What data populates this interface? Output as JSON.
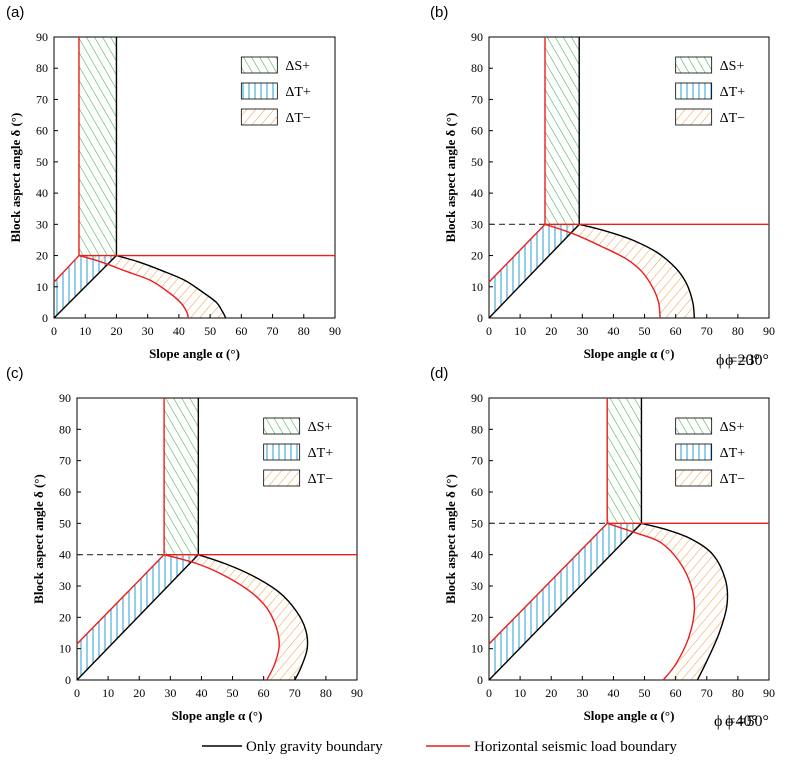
{
  "chart_data": [
    {
      "type": "area",
      "panel_label": "(a)",
      "phi_label": "ϕ =20°",
      "xlabel": "Slope angle  α  (°)",
      "ylabel": "Block aspect angle  δ  (°)",
      "xlim": [
        0,
        90
      ],
      "ylim": [
        0,
        90
      ],
      "xticks": [
        "0",
        "10",
        "20",
        "30",
        "40",
        "50",
        "60",
        "70",
        "80",
        "90"
      ],
      "yticks": [
        "0",
        "10",
        "20",
        "30",
        "40",
        "50",
        "60",
        "70",
        "80",
        "90"
      ],
      "legend": [
        "ΔS+",
        "ΔT+",
        "ΔT−"
      ],
      "gravity": {
        "vertical_x": 20,
        "corner_y": 20,
        "curve": [
          [
            20,
            20
          ],
          [
            27,
            18
          ],
          [
            35,
            15
          ],
          [
            42,
            12
          ],
          [
            48,
            8
          ],
          [
            52,
            5
          ],
          [
            54,
            2
          ],
          [
            55,
            0
          ]
        ]
      },
      "seismic": {
        "vertical_x": 8,
        "horizontal_y": 20,
        "origin_y": 11.5,
        "curve": [
          [
            8,
            20
          ],
          [
            15,
            18
          ],
          [
            23,
            15
          ],
          [
            31,
            12
          ],
          [
            37,
            8
          ],
          [
            40.5,
            5
          ],
          [
            42.5,
            2
          ],
          [
            43,
            0
          ]
        ]
      }
    },
    {
      "type": "area",
      "panel_label": "(b)",
      "phi_label": "ϕ =30°",
      "xlabel": "Slope angle  α  (°)",
      "ylabel": "Block aspect angle  δ  (°)",
      "xlim": [
        0,
        90
      ],
      "ylim": [
        0,
        90
      ],
      "xticks": [
        "0",
        "10",
        "20",
        "30",
        "40",
        "50",
        "60",
        "70",
        "80",
        "90"
      ],
      "yticks": [
        "0",
        "10",
        "20",
        "30",
        "40",
        "50",
        "60",
        "70",
        "80",
        "90"
      ],
      "legend": [
        "ΔS+",
        "ΔT+",
        "ΔT−"
      ],
      "gravity": {
        "vertical_x": 29,
        "corner_y": 30,
        "curve": [
          [
            29,
            30
          ],
          [
            37,
            28
          ],
          [
            46,
            25
          ],
          [
            54,
            21
          ],
          [
            60,
            16
          ],
          [
            63.5,
            11
          ],
          [
            65.5,
            5
          ],
          [
            66,
            0
          ]
        ]
      },
      "seismic": {
        "vertical_x": 18,
        "horizontal_y": 30,
        "origin_y": 11.5,
        "curve": [
          [
            18,
            30
          ],
          [
            27,
            27
          ],
          [
            36,
            23
          ],
          [
            44,
            19
          ],
          [
            49,
            15
          ],
          [
            52.5,
            10
          ],
          [
            54.5,
            5
          ],
          [
            55,
            0
          ]
        ]
      }
    },
    {
      "type": "area",
      "panel_label": "(c)",
      "phi_label": "ϕ =40°",
      "xlabel": "Slope angle  α  (°)",
      "ylabel": "Block aspect angle  δ  (°)",
      "xlim": [
        0,
        90
      ],
      "ylim": [
        0,
        90
      ],
      "xticks": [
        "0",
        "10",
        "20",
        "30",
        "40",
        "50",
        "60",
        "70",
        "80",
        "90"
      ],
      "yticks": [
        "0",
        "10",
        "20",
        "30",
        "40",
        "50",
        "60",
        "70",
        "80",
        "90"
      ],
      "legend": [
        "ΔS+",
        "ΔT+",
        "ΔT−"
      ],
      "gravity": {
        "vertical_x": 39,
        "corner_y": 40,
        "curve": [
          [
            39,
            40
          ],
          [
            48,
            37
          ],
          [
            57,
            33
          ],
          [
            65,
            28
          ],
          [
            70.5,
            22
          ],
          [
            73.5,
            16
          ],
          [
            74,
            10
          ],
          [
            72,
            4
          ],
          [
            70,
            0
          ]
        ]
      },
      "seismic": {
        "vertical_x": 28,
        "horizontal_y": 40,
        "origin_y": 11.5,
        "curve": [
          [
            28,
            40
          ],
          [
            39,
            37
          ],
          [
            48,
            33
          ],
          [
            56,
            28
          ],
          [
            61,
            23
          ],
          [
            64,
            17
          ],
          [
            65,
            11
          ],
          [
            63.5,
            5
          ],
          [
            61,
            0
          ]
        ]
      }
    },
    {
      "type": "area",
      "panel_label": "(d)",
      "phi_label": "ϕ =50°",
      "xlabel": "Slope angle  α  (°)",
      "ylabel": "Block aspect angle  δ  (°)",
      "xlim": [
        0,
        90
      ],
      "ylim": [
        0,
        90
      ],
      "xticks": [
        "0",
        "10",
        "20",
        "30",
        "40",
        "50",
        "60",
        "70",
        "80",
        "90"
      ],
      "yticks": [
        "0",
        "10",
        "20",
        "30",
        "40",
        "50",
        "60",
        "70",
        "80",
        "90"
      ],
      "legend": [
        "ΔS+",
        "ΔT+",
        "ΔT−"
      ],
      "gravity": {
        "vertical_x": 49,
        "corner_y": 50,
        "curve": [
          [
            49,
            50
          ],
          [
            57,
            48
          ],
          [
            65,
            45
          ],
          [
            72,
            40
          ],
          [
            76,
            32
          ],
          [
            76.5,
            24
          ],
          [
            74,
            15
          ],
          [
            70,
            6
          ],
          [
            67,
            0
          ]
        ]
      },
      "seismic": {
        "vertical_x": 38,
        "horizontal_y": 50,
        "origin_y": 11.5,
        "curve": [
          [
            38,
            50
          ],
          [
            47,
            47
          ],
          [
            55,
            44
          ],
          [
            61,
            38
          ],
          [
            65,
            30
          ],
          [
            66,
            22
          ],
          [
            64,
            13
          ],
          [
            60,
            5
          ],
          [
            56,
            0
          ]
        ]
      }
    }
  ],
  "bottom_legend": {
    "gravity_label": "Only gravity boundary",
    "seismic_label": "Horizontal seismic load boundary",
    "gravity_color": "#000000",
    "seismic_color": "#ee1c1c"
  },
  "colors": {
    "green_hatch": "#3cb043",
    "blue_hatch": "#2a9fd6",
    "orange_hatch": "#f0a050",
    "seismic_red": "#ee1c1c",
    "gravity_black": "#000000",
    "dashed_gray": "#333333"
  }
}
